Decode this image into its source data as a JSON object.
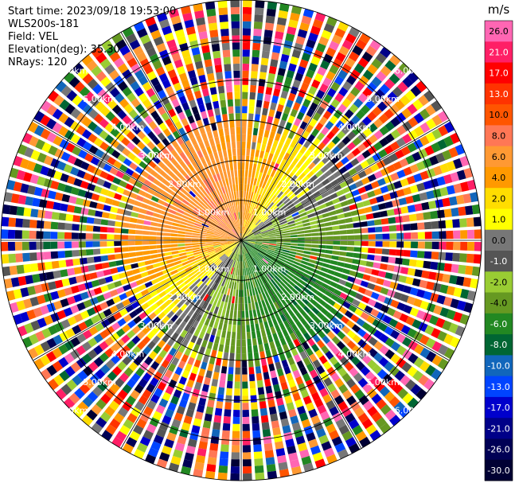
{
  "header": {
    "start_time": "Start time: 2023/09/18 19:53:00",
    "instrument": "WLS200s-181",
    "field": "Field: VEL",
    "elevation": "Elevation(deg): 35.30",
    "nrays": "NRays: 120"
  },
  "chart_data": {
    "type": "heatmap",
    "projection": "polar-ppi",
    "field": "VEL",
    "units": "m/s",
    "n_rays": 120,
    "max_range_km": 6,
    "range_rings_km": [
      1,
      2,
      3,
      4,
      5,
      6
    ],
    "ring_labels": [
      "1.00km",
      "2.00km",
      "3.00km",
      "4.00km",
      "5.00km",
      "6.00km"
    ],
    "colorbar": {
      "unit_label": "m/s",
      "ticks": [
        "26.0",
        "21.0",
        "17.0",
        "13.0",
        "10.0",
        "8.0",
        "6.0",
        "4.0",
        "2.0",
        "1.0",
        "0.0",
        "-1.0",
        "-2.0",
        "-4.0",
        "-6.0",
        "-8.0",
        "-10.0",
        "-13.0",
        "-17.0",
        "-21.0",
        "-26.0",
        "-30.0"
      ],
      "colors": [
        "#ff66b3",
        "#ff1f66",
        "#ff0000",
        "#ff3300",
        "#ff5500",
        "#ff7755",
        "#ff9933",
        "#ff9900",
        "#ffdd00",
        "#ffff00",
        "#777777",
        "#555555",
        "#99cc33",
        "#669922",
        "#228822",
        "#006633",
        "#1166bb",
        "#0044ff",
        "#0000cc",
        "#000088",
        "#000055",
        "#000033"
      ]
    },
    "clean_range_km": 3.0,
    "velocity_pattern": "approaching (negative, green) toward south-east; receding (positive, yellow/orange) toward north-west; near-zero grey band across east-west"
  }
}
